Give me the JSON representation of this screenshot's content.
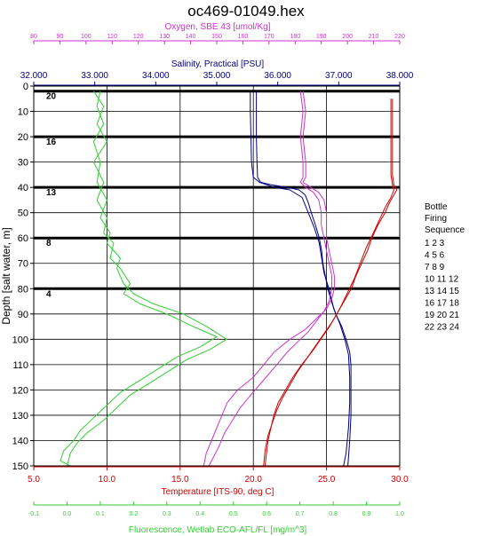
{
  "chart_data": {
    "type": "line",
    "title": "oc469-01049.hex",
    "ylabel": "Depth [salt water, m]",
    "ylim": [
      0,
      150
    ],
    "y_inverted": true,
    "y_ticks": [
      "0",
      "10",
      "20",
      "30",
      "40",
      "50",
      "60",
      "70",
      "80",
      "90",
      "100",
      "110",
      "120",
      "130",
      "140",
      "150"
    ],
    "grid": true,
    "axes": {
      "oxygen": {
        "label": "Oxygen, SBE 43 [umol/Kg]",
        "range": [
          80,
          220
        ],
        "ticks": [
          "80",
          "90",
          "100",
          "110",
          "120",
          "130",
          "140",
          "150",
          "160",
          "170",
          "180",
          "190",
          "200",
          "210",
          "220"
        ],
        "color": "#cc33cc",
        "position": "top"
      },
      "salinity": {
        "label": "Salinity, Practical [PSU]",
        "range": [
          32,
          38
        ],
        "ticks": [
          "32.000",
          "33.000",
          "34.000",
          "35.000",
          "36.000",
          "37.000",
          "38.000"
        ],
        "color": "#000080",
        "position": "top"
      },
      "temperature": {
        "label": "Temperature [ITS-90, deg C]",
        "range": [
          5,
          30
        ],
        "ticks": [
          "5.0",
          "10.0",
          "15.0",
          "20.0",
          "25.0",
          "30.0"
        ],
        "color": "#cc0000",
        "position": "bottom"
      },
      "fluorescence": {
        "label": "Fluorescence, Wetlab ECO-AFL/FL [mg/m^3]",
        "range": [
          -0.1,
          1.0
        ],
        "ticks": [
          "-0.1",
          "0.0",
          "0.1",
          "0.2",
          "0.3",
          "0.4",
          "0.5",
          "0.6",
          "0.7",
          "0.8",
          "0.9",
          "1.0"
        ],
        "color": "#33cc33",
        "position": "bottom"
      }
    },
    "series": [
      {
        "axis": "salinity",
        "color": "#000080",
        "points": [
          [
            35.65,
            2
          ],
          [
            35.65,
            10
          ],
          [
            35.65,
            20
          ],
          [
            35.66,
            30
          ],
          [
            35.67,
            36
          ],
          [
            35.72,
            38
          ],
          [
            35.9,
            39
          ],
          [
            36.15,
            40
          ],
          [
            36.35,
            41
          ],
          [
            36.45,
            43
          ],
          [
            36.5,
            46
          ],
          [
            36.55,
            50
          ],
          [
            36.62,
            55
          ],
          [
            36.68,
            60
          ],
          [
            36.72,
            65
          ],
          [
            36.74,
            70
          ],
          [
            36.78,
            75
          ],
          [
            36.82,
            80
          ],
          [
            36.88,
            85
          ],
          [
            36.95,
            90
          ],
          [
            37.05,
            95
          ],
          [
            37.12,
            100
          ],
          [
            37.18,
            105
          ],
          [
            37.2,
            110
          ],
          [
            37.2,
            120
          ],
          [
            37.2,
            130
          ],
          [
            37.18,
            140
          ],
          [
            37.15,
            150
          ]
        ]
      },
      {
        "axis": "salinity",
        "color": "#000080",
        "points": [
          [
            35.55,
            2
          ],
          [
            35.55,
            10
          ],
          [
            35.56,
            20
          ],
          [
            35.57,
            30
          ],
          [
            35.6,
            36
          ],
          [
            35.7,
            38
          ],
          [
            35.95,
            40
          ],
          [
            36.2,
            41
          ],
          [
            36.4,
            44
          ],
          [
            36.5,
            50
          ],
          [
            36.6,
            56
          ],
          [
            36.68,
            62
          ],
          [
            36.72,
            68
          ],
          [
            36.76,
            74
          ],
          [
            36.84,
            80
          ],
          [
            36.92,
            88
          ],
          [
            37.02,
            94
          ],
          [
            37.1,
            100
          ],
          [
            37.16,
            106
          ],
          [
            37.18,
            115
          ],
          [
            37.18,
            125
          ],
          [
            37.16,
            135
          ],
          [
            37.12,
            145
          ],
          [
            37.08,
            150
          ]
        ]
      },
      {
        "axis": "temperature",
        "color": "#cc0000",
        "points": [
          [
            29.5,
            5
          ],
          [
            29.5,
            15
          ],
          [
            29.5,
            25
          ],
          [
            29.5,
            35
          ],
          [
            29.6,
            39
          ],
          [
            29.8,
            41
          ],
          [
            29.6,
            43
          ],
          [
            29.3,
            46
          ],
          [
            29.0,
            50
          ],
          [
            28.5,
            55
          ],
          [
            28.1,
            60
          ],
          [
            27.8,
            65
          ],
          [
            27.4,
            70
          ],
          [
            27.0,
            75
          ],
          [
            26.7,
            80
          ],
          [
            26.2,
            85
          ],
          [
            25.7,
            90
          ],
          [
            25.2,
            95
          ],
          [
            24.6,
            100
          ],
          [
            24.0,
            105
          ],
          [
            23.3,
            110
          ],
          [
            22.7,
            115
          ],
          [
            22.2,
            120
          ],
          [
            21.7,
            125
          ],
          [
            21.4,
            130
          ],
          [
            21.2,
            135
          ],
          [
            21.0,
            140
          ],
          [
            20.9,
            145
          ],
          [
            20.8,
            150
          ]
        ]
      },
      {
        "axis": "temperature",
        "color": "#cc0000",
        "points": [
          [
            29.4,
            5
          ],
          [
            29.4,
            15
          ],
          [
            29.4,
            25
          ],
          [
            29.4,
            35
          ],
          [
            29.5,
            39
          ],
          [
            29.6,
            41
          ],
          [
            29.4,
            44
          ],
          [
            29.0,
            48
          ],
          [
            28.6,
            53
          ],
          [
            28.2,
            58
          ],
          [
            27.7,
            64
          ],
          [
            27.3,
            70
          ],
          [
            26.9,
            76
          ],
          [
            26.4,
            82
          ],
          [
            25.9,
            88
          ],
          [
            25.4,
            93
          ],
          [
            24.8,
            98
          ],
          [
            24.2,
            103
          ],
          [
            23.6,
            108
          ],
          [
            23.0,
            113
          ],
          [
            22.5,
            118
          ],
          [
            22.0,
            123
          ],
          [
            21.6,
            128
          ],
          [
            21.3,
            133
          ],
          [
            21.0,
            138
          ],
          [
            20.8,
            144
          ],
          [
            20.7,
            150
          ]
        ]
      },
      {
        "axis": "oxygen",
        "color": "#cc33cc",
        "points": [
          [
            183,
            2
          ],
          [
            184,
            10
          ],
          [
            183,
            20
          ],
          [
            184,
            30
          ],
          [
            184,
            36
          ],
          [
            183,
            38
          ],
          [
            186,
            40
          ],
          [
            189,
            42
          ],
          [
            191,
            45
          ],
          [
            192,
            50
          ],
          [
            192,
            55
          ],
          [
            192,
            60
          ],
          [
            193,
            65
          ],
          [
            194,
            70
          ],
          [
            195,
            75
          ],
          [
            195,
            80
          ],
          [
            194,
            84
          ],
          [
            192,
            88
          ],
          [
            188,
            92
          ],
          [
            184,
            96
          ],
          [
            178,
            100
          ],
          [
            172,
            105
          ],
          [
            168,
            110
          ],
          [
            164,
            115
          ],
          [
            158,
            120
          ],
          [
            154,
            125
          ],
          [
            152,
            130
          ],
          [
            150,
            135
          ],
          [
            148,
            140
          ],
          [
            146,
            145
          ],
          [
            145,
            150
          ]
        ]
      },
      {
        "axis": "oxygen",
        "color": "#cc33cc",
        "points": [
          [
            182,
            2
          ],
          [
            183,
            10
          ],
          [
            182,
            20
          ],
          [
            183,
            30
          ],
          [
            183,
            36
          ],
          [
            182,
            38
          ],
          [
            184,
            40
          ],
          [
            187,
            42
          ],
          [
            189,
            45
          ],
          [
            190,
            50
          ],
          [
            190,
            55
          ],
          [
            191,
            60
          ],
          [
            192,
            65
          ],
          [
            193,
            70
          ],
          [
            194,
            75
          ],
          [
            194,
            80
          ],
          [
            193,
            85
          ],
          [
            191,
            89
          ],
          [
            188,
            93
          ],
          [
            185,
            97
          ],
          [
            181,
            101
          ],
          [
            177,
            105
          ],
          [
            173,
            110
          ],
          [
            168,
            116
          ],
          [
            163,
            122
          ],
          [
            159,
            127
          ],
          [
            156,
            132
          ],
          [
            153,
            137
          ],
          [
            151,
            142
          ],
          [
            149,
            146
          ],
          [
            147,
            150
          ]
        ]
      },
      {
        "axis": "fluorescence",
        "color": "#33cc33",
        "points": [
          [
            0.1,
            2
          ],
          [
            0.09,
            8
          ],
          [
            0.11,
            15
          ],
          [
            0.08,
            22
          ],
          [
            0.1,
            30
          ],
          [
            0.09,
            38
          ],
          [
            0.12,
            45
          ],
          [
            0.1,
            52
          ],
          [
            0.13,
            58
          ],
          [
            0.12,
            62
          ],
          [
            0.16,
            68
          ],
          [
            0.15,
            72
          ],
          [
            0.17,
            78
          ],
          [
            0.2,
            82
          ],
          [
            0.26,
            86
          ],
          [
            0.35,
            90
          ],
          [
            0.42,
            95
          ],
          [
            0.48,
            100
          ],
          [
            0.43,
            104
          ],
          [
            0.36,
            108
          ],
          [
            0.3,
            113
          ],
          [
            0.24,
            118
          ],
          [
            0.19,
            122
          ],
          [
            0.15,
            127
          ],
          [
            0.11,
            132
          ],
          [
            0.06,
            137
          ],
          [
            0.03,
            141
          ],
          [
            0.01,
            145
          ],
          [
            0.0,
            150
          ]
        ]
      },
      {
        "axis": "fluorescence",
        "color": "#33cc33",
        "points": [
          [
            0.08,
            2
          ],
          [
            0.11,
            8
          ],
          [
            0.09,
            15
          ],
          [
            0.12,
            22
          ],
          [
            0.08,
            30
          ],
          [
            0.11,
            38
          ],
          [
            0.09,
            45
          ],
          [
            0.12,
            52
          ],
          [
            0.11,
            58
          ],
          [
            0.14,
            62
          ],
          [
            0.13,
            68
          ],
          [
            0.16,
            72
          ],
          [
            0.19,
            78
          ],
          [
            0.17,
            82
          ],
          [
            0.22,
            86
          ],
          [
            0.3,
            90
          ],
          [
            0.38,
            95
          ],
          [
            0.45,
            99
          ],
          [
            0.4,
            103
          ],
          [
            0.33,
            107
          ],
          [
            0.27,
            112
          ],
          [
            0.21,
            117
          ],
          [
            0.16,
            121
          ],
          [
            0.12,
            126
          ],
          [
            0.08,
            131
          ],
          [
            0.04,
            136
          ],
          [
            0.02,
            140
          ],
          [
            -0.01,
            144
          ],
          [
            -0.02,
            148
          ],
          [
            0.01,
            150
          ]
        ]
      }
    ],
    "bottle_lines": [
      {
        "depth": 2,
        "label": "20"
      },
      {
        "depth": 20,
        "label": "16"
      },
      {
        "depth": 40,
        "label": "13"
      },
      {
        "depth": 60,
        "label": "8"
      },
      {
        "depth": 80,
        "label": "4"
      }
    ],
    "legend": {
      "title": [
        "Bottle",
        "Firing",
        "Sequence"
      ],
      "rows": [
        "1  2  3",
        "4  5  6",
        "7  8  9",
        "10 11 12",
        "13 14 15",
        "16 17 18",
        "19 20 21",
        "22 23 24"
      ],
      "placement": "right"
    }
  }
}
